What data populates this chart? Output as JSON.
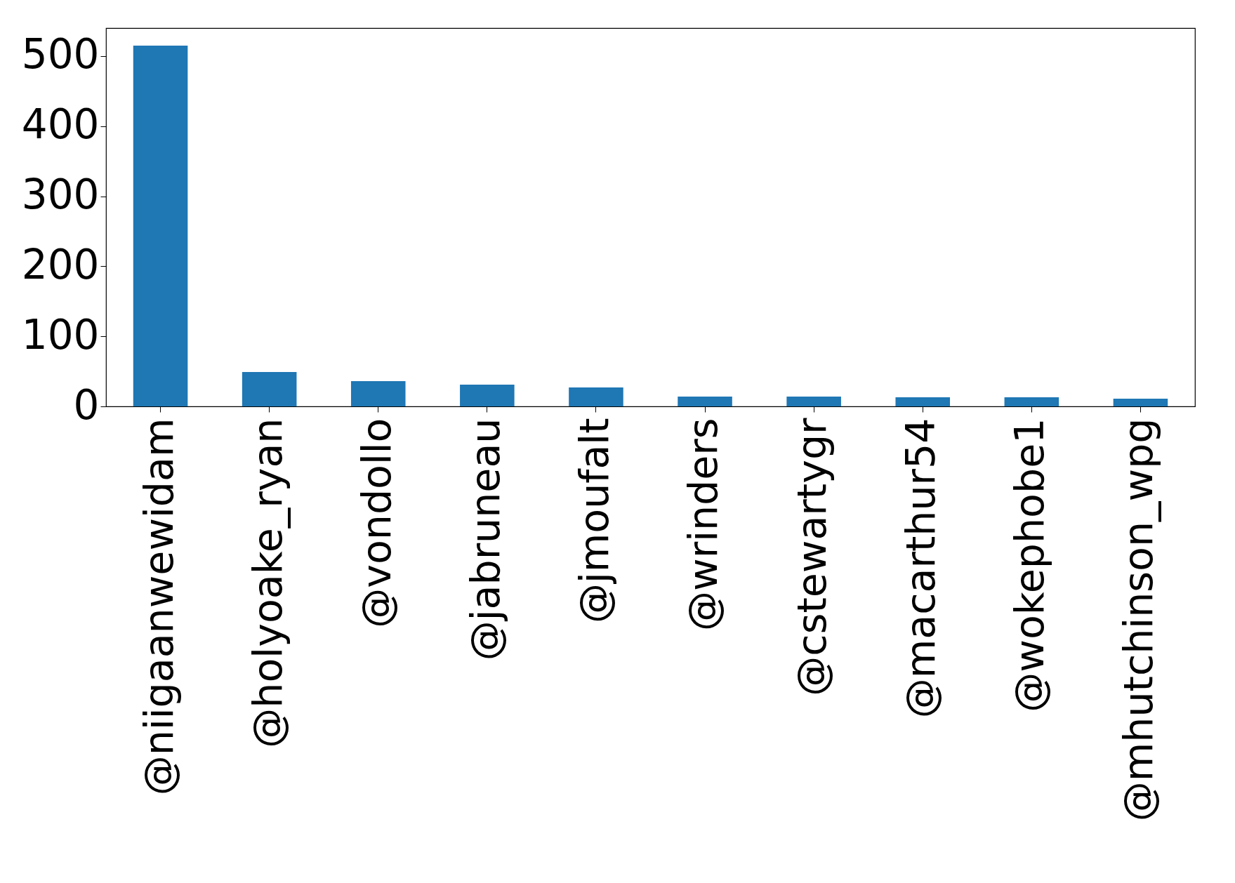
{
  "chart_data": {
    "type": "bar",
    "categories": [
      "@niigaanwewidam",
      "@holyoake_ryan",
      "@vondollo",
      "@jabruneau",
      "@jmoufalt",
      "@wrinders",
      "@cstewartygr",
      "@macarthur54",
      "@wokephobe1",
      "@mhutchinson_wpg"
    ],
    "values": [
      515,
      49,
      36,
      31,
      27,
      14,
      14,
      13,
      13,
      11
    ],
    "color": "#1f77b4",
    "ylim": [
      0,
      540
    ],
    "yticks": [
      0,
      100,
      200,
      300,
      400,
      500
    ],
    "grid": false
  }
}
